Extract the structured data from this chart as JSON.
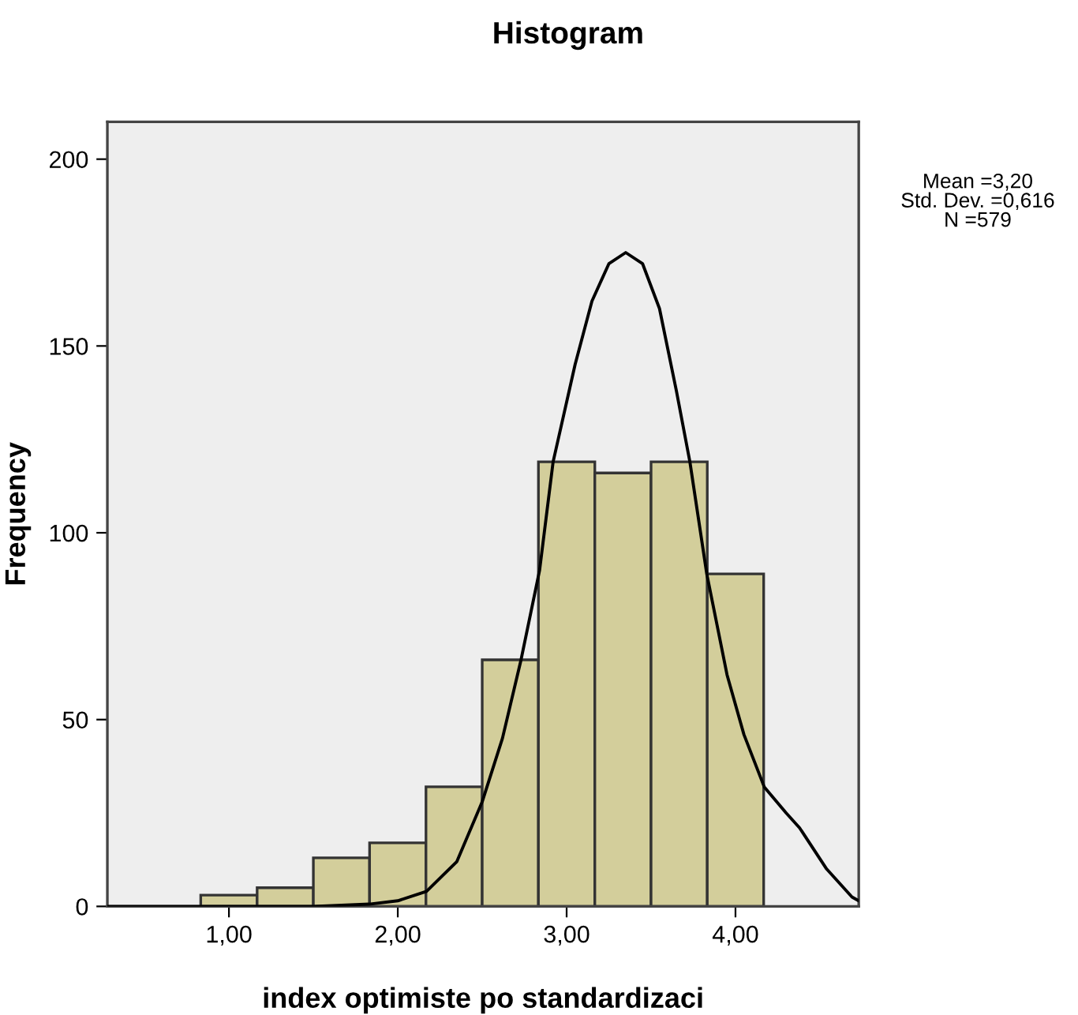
{
  "chart_data": {
    "type": "histogram",
    "title": "Histogram",
    "xlabel": "index optimiste po standardizaci",
    "ylabel": "Frequency",
    "series": [
      {
        "color": "#d3ce9b",
        "bins": [
          0.833,
          1.167,
          1.5,
          1.833,
          2.167,
          2.5,
          2.833,
          3.167,
          3.5,
          3.833,
          4.167
        ],
        "values": [
          3,
          5,
          13,
          17,
          32,
          66,
          119,
          116,
          119,
          89
        ]
      },
      {
        "type": "line",
        "color": "#000000",
        "x": [
          0.28,
          1.5,
          1.83,
          2.0,
          2.17,
          2.35,
          2.5,
          2.62,
          2.73,
          2.84,
          2.92,
          3.05,
          3.15,
          3.25,
          3.35,
          3.45,
          3.55,
          3.65,
          3.73,
          3.83,
          3.95,
          4.05,
          4.17,
          4.3,
          4.38,
          4.54,
          4.69,
          4.73
        ],
        "values": [
          0,
          0,
          0.6,
          1.5,
          4,
          12,
          28,
          45,
          66,
          90,
          119,
          145,
          162,
          172,
          175,
          172,
          160,
          138,
          119,
          89,
          62,
          46,
          32,
          25,
          21,
          10,
          2.5,
          1.5
        ]
      }
    ],
    "xlim": [
      0.28,
      4.73
    ],
    "ylim": [
      0,
      210
    ],
    "xticks": [
      {
        "value": 1,
        "label": "1,00"
      },
      {
        "value": 2,
        "label": "2,00"
      },
      {
        "value": 3,
        "label": "3,00"
      },
      {
        "value": 4,
        "label": "4,00"
      }
    ],
    "yticks": [
      0,
      50,
      100,
      150,
      200
    ],
    "annotations": [
      "Mean =3,20",
      "Std. Dev. =0,616",
      "N =579"
    ]
  }
}
